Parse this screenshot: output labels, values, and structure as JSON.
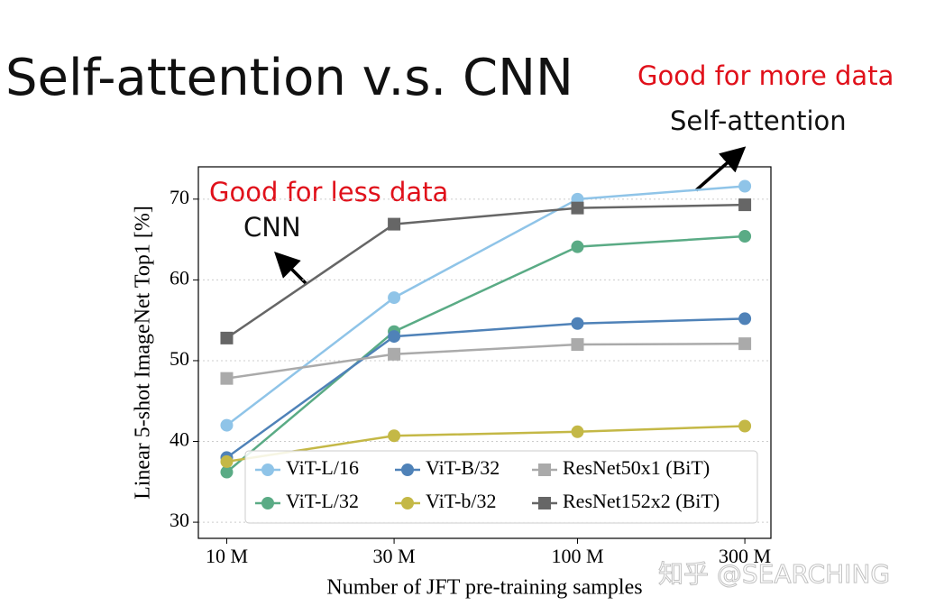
{
  "slide": {
    "title": "Self-attention v.s. CNN",
    "annotations": [
      "Good for more data",
      "Self-attention",
      "Good for less data",
      "CNN"
    ],
    "watermark": "知乎 @SEARCHING"
  },
  "chart_data": {
    "type": "line",
    "x_label": "Number of JFT pre-training samples",
    "y_label": "Linear 5-shot ImageNet Top1 [%]",
    "x": [
      10,
      30,
      100,
      300
    ],
    "x_log": true,
    "xlim": [
      8.3,
      356
    ],
    "xticks": [
      {
        "value": 10,
        "label": "10 M"
      },
      {
        "value": 30,
        "label": "30 M"
      },
      {
        "value": 100,
        "label": "100 M"
      },
      {
        "value": 300,
        "label": "300 M"
      }
    ],
    "ylim": [
      28,
      74
    ],
    "yticks": [
      30,
      40,
      50,
      60,
      70
    ],
    "grid": true,
    "series": [
      {
        "name": "ViT-L/16",
        "color": "#8fc4e8",
        "marker": "circle",
        "values": [
          42,
          57.8,
          70,
          71.6
        ]
      },
      {
        "name": "ViT-L/32",
        "color": "#5aab85",
        "marker": "circle",
        "values": [
          36.2,
          53.6,
          64.1,
          65.4
        ]
      },
      {
        "name": "ViT-B/32",
        "color": "#4f82b8",
        "marker": "circle",
        "values": [
          38,
          53,
          54.6,
          55.2
        ]
      },
      {
        "name": "ViT-b/32",
        "color": "#c4b846",
        "marker": "circle",
        "values": [
          37.5,
          40.7,
          41.2,
          41.9
        ]
      },
      {
        "name": "ResNet50x1 (BiT)",
        "color": "#aaaaaa",
        "marker": "square",
        "values": [
          47.8,
          50.8,
          52,
          52.1
        ]
      },
      {
        "name": "ResNet152x2 (BiT)",
        "color": "#666666",
        "marker": "square",
        "values": [
          52.8,
          66.9,
          68.9,
          69.3
        ]
      }
    ]
  }
}
